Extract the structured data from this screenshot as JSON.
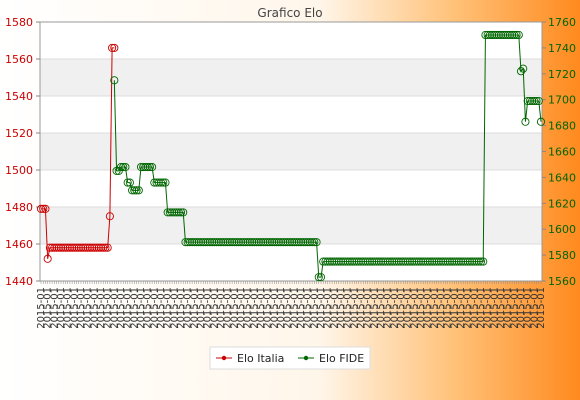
{
  "chart_data": {
    "type": "line",
    "title": "Grafico Elo",
    "left_axis": {
      "min": 1440,
      "max": 1580,
      "ticks": [
        1440,
        1460,
        1480,
        1500,
        1520,
        1540,
        1560,
        1580
      ],
      "color": "#cc0000"
    },
    "right_axis": {
      "min": 1560,
      "max": 1760,
      "ticks": [
        1560,
        1580,
        1600,
        1620,
        1640,
        1660,
        1680,
        1700,
        1720,
        1740,
        1760
      ],
      "color": "#006600"
    },
    "x_tick_label": "2015-01",
    "grid": true,
    "legend_position": "bottom",
    "series": [
      {
        "name": "Elo Italia",
        "axis": "left",
        "color": "#cc0000",
        "values": [
          1479,
          1479,
          1479,
          1452,
          1458,
          1458,
          1458,
          1458,
          1458,
          1458,
          1458,
          1458,
          1458,
          1458,
          1458,
          1458,
          1458,
          1458,
          1458,
          1458,
          1458,
          1458,
          1458,
          1458,
          1458,
          1458,
          1458,
          1458,
          1458,
          1458,
          1458,
          1475,
          1566,
          1566
        ]
      },
      {
        "name": "Elo FIDE",
        "axis": "right",
        "color": "#006600",
        "start_index": 33,
        "values": [
          1715,
          1645,
          1645,
          1648,
          1648,
          1648,
          1636,
          1636,
          1630,
          1630,
          1630,
          1630,
          1648,
          1648,
          1648,
          1648,
          1648,
          1648,
          1636,
          1636,
          1636,
          1636,
          1636,
          1636,
          1613,
          1613,
          1613,
          1613,
          1613,
          1613,
          1613,
          1613,
          1590,
          1590,
          1590,
          1590,
          1590,
          1590,
          1590,
          1590,
          1590,
          1590,
          1590,
          1590,
          1590,
          1590,
          1590,
          1590,
          1590,
          1590,
          1590,
          1590,
          1590,
          1590,
          1590,
          1590,
          1590,
          1590,
          1590,
          1590,
          1590,
          1590,
          1590,
          1590,
          1590,
          1590,
          1590,
          1590,
          1590,
          1590,
          1590,
          1590,
          1590,
          1590,
          1590,
          1590,
          1590,
          1590,
          1590,
          1590,
          1590,
          1590,
          1590,
          1590,
          1590,
          1590,
          1590,
          1590,
          1590,
          1590,
          1590,
          1590,
          1563,
          1563,
          1575,
          1575,
          1575,
          1575,
          1575,
          1575,
          1575,
          1575,
          1575,
          1575,
          1575,
          1575,
          1575,
          1575,
          1575,
          1575,
          1575,
          1575,
          1575,
          1575,
          1575,
          1575,
          1575,
          1575,
          1575,
          1575,
          1575,
          1575,
          1575,
          1575,
          1575,
          1575,
          1575,
          1575,
          1575,
          1575,
          1575,
          1575,
          1575,
          1575,
          1575,
          1575,
          1575,
          1575,
          1575,
          1575,
          1575,
          1575,
          1575,
          1575,
          1575,
          1575,
          1575,
          1575,
          1575,
          1575,
          1575,
          1575,
          1575,
          1575,
          1575,
          1575,
          1575,
          1575,
          1575,
          1575,
          1575,
          1575,
          1575,
          1575,
          1575,
          1575,
          1575,
          1750,
          1750,
          1750,
          1750,
          1750,
          1750,
          1750,
          1750,
          1750,
          1750,
          1750,
          1750,
          1750,
          1750,
          1750,
          1750,
          1722,
          1724,
          1683,
          1699,
          1699,
          1699,
          1699,
          1699,
          1699,
          1683
        ]
      }
    ]
  }
}
